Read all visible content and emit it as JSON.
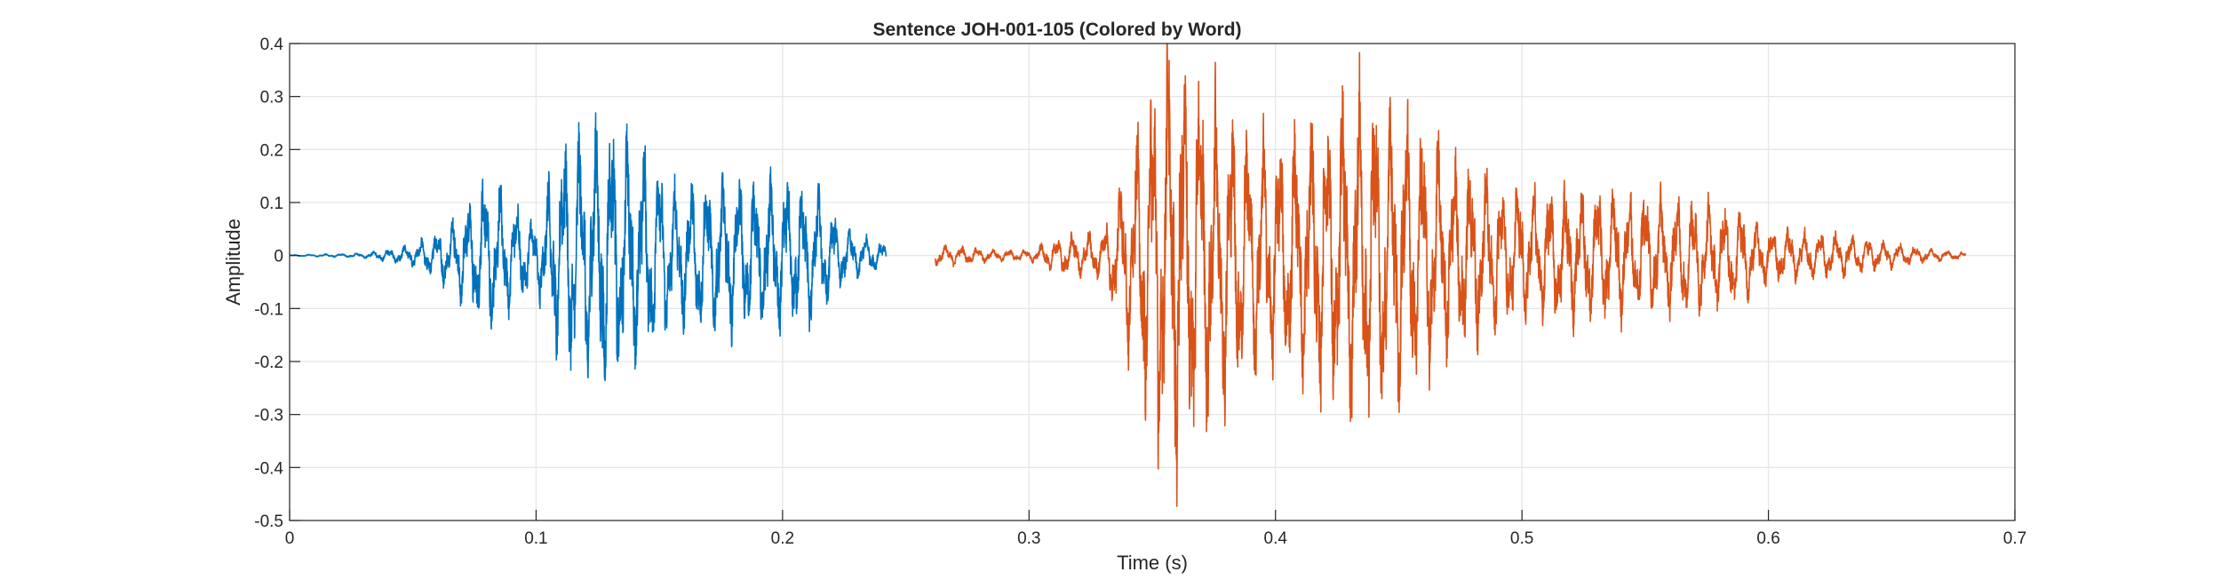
{
  "chart_data": {
    "type": "line",
    "title": "Sentence JOH-001-105 (Colored by Word)",
    "xlabel": "Time (s)",
    "ylabel": "Amplitude",
    "xlim": [
      0,
      0.7
    ],
    "ylim": [
      -0.5,
      0.4
    ],
    "xticks": [
      0,
      0.1,
      0.2,
      0.3,
      0.4,
      0.5,
      0.6,
      0.7
    ],
    "xtick_labels": [
      "0",
      "0.1",
      "0.2",
      "0.3",
      "0.4",
      "0.5",
      "0.6",
      "0.7"
    ],
    "yticks": [
      -0.5,
      -0.4,
      -0.3,
      -0.2,
      -0.1,
      0,
      0.1,
      0.2,
      0.3,
      0.4
    ],
    "ytick_labels": [
      "-0.5",
      "-0.4",
      "-0.3",
      "-0.2",
      "-0.1",
      "0",
      "0.1",
      "0.2",
      "0.3",
      "0.4"
    ],
    "grid": true,
    "series": [
      {
        "color": "#0072BD",
        "x_range": [
          0,
          0.242
        ],
        "envelope": [
          [
            0.0,
            0.001
          ],
          [
            0.03,
            0.004
          ],
          [
            0.05,
            0.02
          ],
          [
            0.065,
            0.06
          ],
          [
            0.08,
            0.15
          ],
          [
            0.09,
            0.1
          ],
          [
            0.1,
            0.06
          ],
          [
            0.11,
            0.21
          ],
          [
            0.125,
            0.25
          ],
          [
            0.14,
            0.22
          ],
          [
            0.155,
            0.13
          ],
          [
            0.175,
            0.14
          ],
          [
            0.2,
            0.14
          ],
          [
            0.215,
            0.12
          ],
          [
            0.225,
            0.05
          ],
          [
            0.242,
            0.02
          ]
        ]
      },
      {
        "color": "#D95319",
        "x_range": [
          0.262,
          0.68
        ],
        "envelope": [
          [
            0.262,
            0.02
          ],
          [
            0.29,
            0.01
          ],
          [
            0.3,
            0.01
          ],
          [
            0.31,
            0.03
          ],
          [
            0.32,
            0.04
          ],
          [
            0.33,
            0.04
          ],
          [
            0.345,
            0.25
          ],
          [
            0.355,
            0.42
          ],
          [
            0.37,
            0.32
          ],
          [
            0.385,
            0.24
          ],
          [
            0.4,
            0.2
          ],
          [
            0.42,
            0.27
          ],
          [
            0.435,
            0.31
          ],
          [
            0.45,
            0.28
          ],
          [
            0.47,
            0.18
          ],
          [
            0.5,
            0.12
          ],
          [
            0.53,
            0.12
          ],
          [
            0.56,
            0.11
          ],
          [
            0.59,
            0.09
          ],
          [
            0.6,
            0.05
          ],
          [
            0.63,
            0.04
          ],
          [
            0.66,
            0.015
          ],
          [
            0.68,
            0.005
          ]
        ]
      }
    ]
  }
}
